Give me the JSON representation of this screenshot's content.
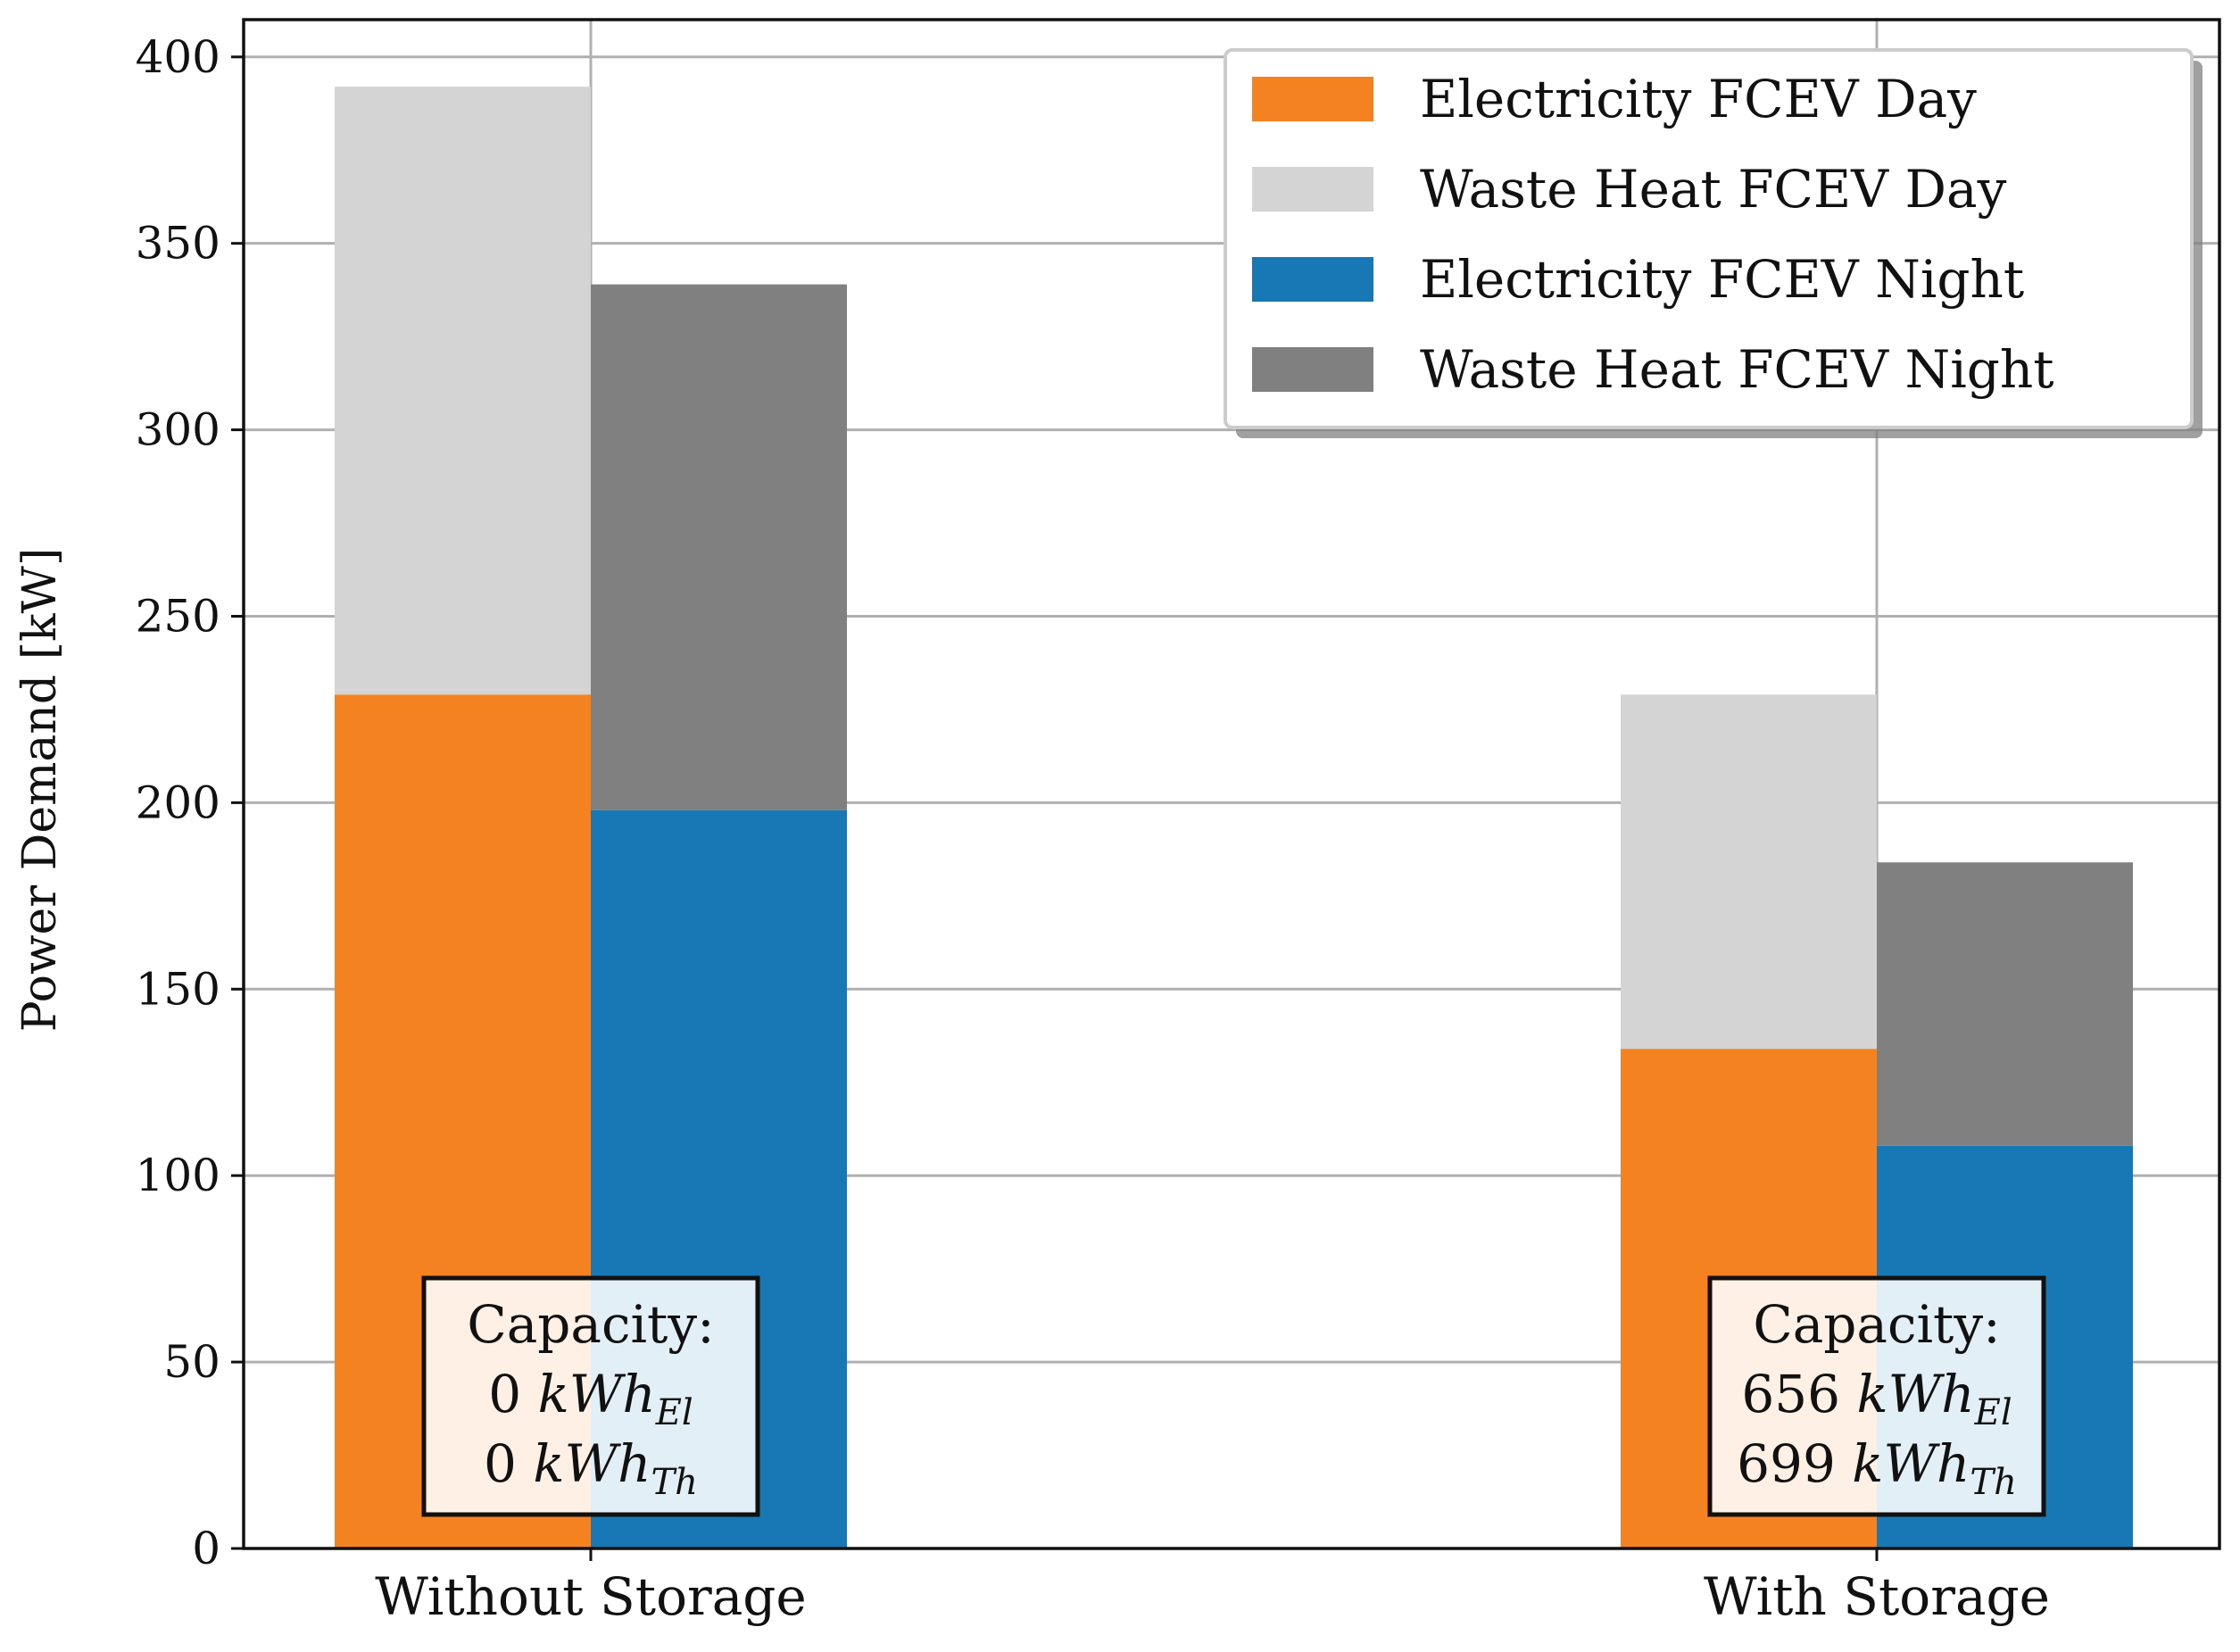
{
  "chart_data": {
    "type": "bar",
    "stacked": true,
    "categories": [
      "Without Storage",
      "With Storage"
    ],
    "ylabel": "Power Demand [kW]",
    "xlabel": "",
    "ylim": [
      0,
      410
    ],
    "yticks": [
      0,
      50,
      100,
      150,
      200,
      250,
      300,
      350,
      400
    ],
    "grid": true,
    "legend_position": "top-right",
    "groups": [
      {
        "name": "Day",
        "position": "left",
        "segments": [
          {
            "series": "Electricity FCEV Day",
            "color": "#F58220",
            "values": [
              229,
              134
            ]
          },
          {
            "series": "Waste Heat FCEV Day",
            "color": "#D3D4D3",
            "values": [
              163,
              95
            ]
          }
        ]
      },
      {
        "name": "Night",
        "position": "right",
        "segments": [
          {
            "series": "Electricity FCEV Night",
            "color": "#1878B6",
            "values": [
              198,
              108
            ]
          },
          {
            "series": "Waste Heat FCEV Night",
            "color": "#808080",
            "values": [
              141,
              76
            ]
          }
        ]
      }
    ],
    "legend": [
      {
        "label": "Electricity FCEV Day",
        "color": "#F58220"
      },
      {
        "label": "Waste Heat FCEV Day",
        "color": "#D3D4D3"
      },
      {
        "label": "Electricity FCEV Night",
        "color": "#1878B6"
      },
      {
        "label": "Waste Heat FCEV Night",
        "color": "#808080"
      }
    ],
    "annotations": [
      {
        "category": "Without Storage",
        "title": "Capacity:",
        "el_value": "0",
        "th_value": "0",
        "unit": "kWh",
        "el_sub": "El",
        "th_sub": "Th"
      },
      {
        "category": "With Storage",
        "title": "Capacity:",
        "el_value": "656",
        "th_value": "699",
        "unit": "kWh",
        "el_sub": "El",
        "th_sub": "Th"
      }
    ]
  }
}
